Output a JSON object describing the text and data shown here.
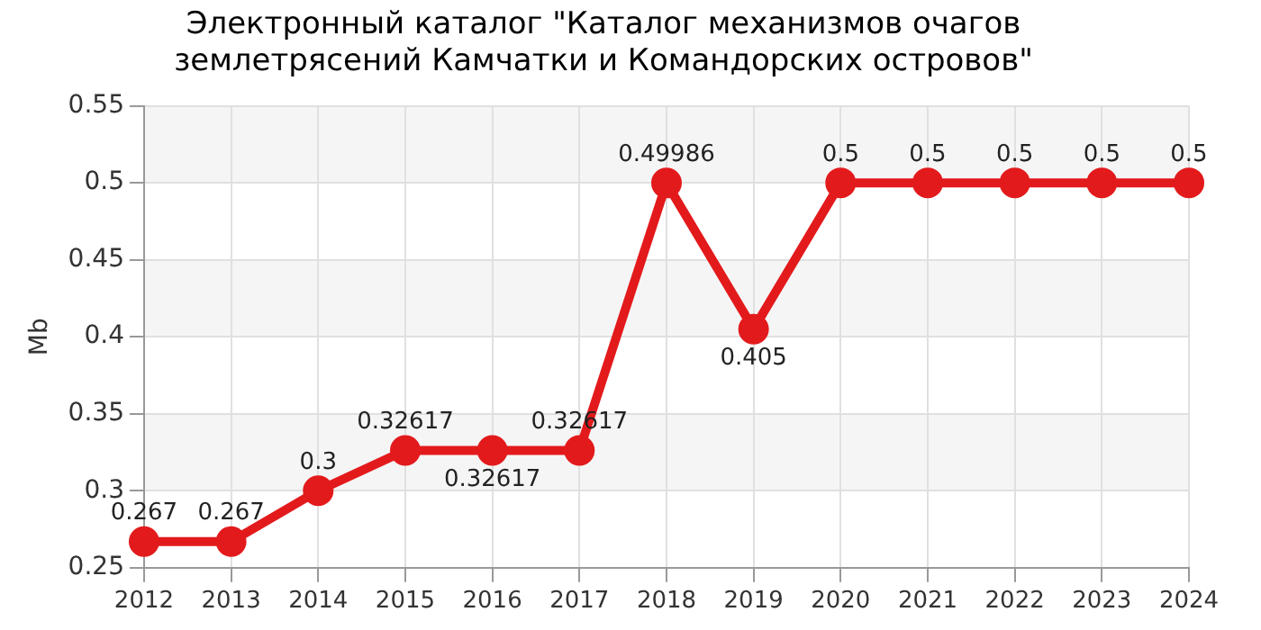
{
  "chart_data": {
    "type": "line",
    "title": "Электронный каталог \"Каталог механизмов очагов\nземлетрясений Камчатки и Командорских островов\"",
    "ylabel": "Mb",
    "categories": [
      "2012",
      "2013",
      "2014",
      "2015",
      "2016",
      "2017",
      "2018",
      "2019",
      "2020",
      "2021",
      "2022",
      "2023",
      "2024"
    ],
    "series": [
      {
        "color": "#e31a1c",
        "values": [
          0.267,
          0.267,
          0.3,
          0.32617,
          0.32617,
          0.32617,
          0.49986,
          0.405,
          0.5,
          0.5,
          0.5,
          0.5,
          0.5
        ]
      }
    ],
    "ylim": [
      0.25,
      0.55
    ],
    "yticks": [
      0.25,
      0.3,
      0.35,
      0.4,
      0.45,
      0.5,
      0.55
    ],
    "grid": true,
    "legend": false,
    "marker": "circle",
    "line_style": "solid",
    "data_labels": true
  }
}
